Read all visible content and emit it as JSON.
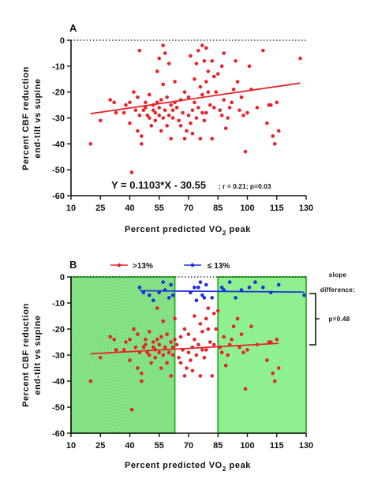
{
  "colors": {
    "above": "#e8232a",
    "below": "#1f2fdc",
    "shade": "#8ff08f",
    "shade_border": "#1aa61a",
    "ink": "#111111"
  },
  "panel_a": {
    "label": "A",
    "ylabel_line1": "Percent  CBF  reduction",
    "ylabel_line2": "end-tilt  vs  supine",
    "xlabel": "Percent  predicted  VO",
    "xlabel_sub": "2",
    "xlabel_tail": " peak",
    "equation": "Y = 0.1103*X - 30.55",
    "stats": "; r = 0.21;  p=0.03"
  },
  "panel_b": {
    "label": "B",
    "ylabel_line1": "Percent  CBF  reduction",
    "ylabel_line2": "end-tilt  vs  supine",
    "xlabel": "Percent  predicted  VO",
    "xlabel_sub": "2",
    "xlabel_tail": " peak",
    "legend_above": ">13%",
    "legend_below": "≤ 13%",
    "annotation_line1": "slope",
    "annotation_line2": "difference:",
    "annotation_p": "p=0.48"
  },
  "chart_data": [
    {
      "panel": "A",
      "type": "scatter",
      "xlabel": "Percent predicted VO2 peak",
      "ylabel": "Percent CBF reduction end-tilt vs supine",
      "xlim": [
        10,
        130
      ],
      "ylim": [
        -60,
        0
      ],
      "xticks": [
        10,
        25,
        40,
        55,
        70,
        85,
        100,
        115,
        130
      ],
      "yticks": [
        0,
        -10,
        -20,
        -30,
        -40,
        -50,
        -60
      ],
      "reference_line_y": 0,
      "series": [
        {
          "color": "#e8232a",
          "points": [
            [
              20,
              -40
            ],
            [
              25,
              -31
            ],
            [
              30,
              -23
            ],
            [
              32,
              -24
            ],
            [
              33,
              -28
            ],
            [
              37,
              -28
            ],
            [
              38,
              -25
            ],
            [
              40,
              -24
            ],
            [
              40,
              -32
            ],
            [
              41,
              -51
            ],
            [
              42,
              -20
            ],
            [
              43,
              -27
            ],
            [
              44,
              -22
            ],
            [
              44,
              -35
            ],
            [
              45,
              -4
            ],
            [
              45,
              -29
            ],
            [
              46,
              -37
            ],
            [
              46,
              -40
            ],
            [
              47,
              -27
            ],
            [
              48,
              -24
            ],
            [
              48,
              -26
            ],
            [
              49,
              -29
            ],
            [
              50,
              -21
            ],
            [
              50,
              -30
            ],
            [
              51,
              -33
            ],
            [
              52,
              -25
            ],
            [
              52,
              -27
            ],
            [
              53,
              -28
            ],
            [
              53,
              -31
            ],
            [
              54,
              -12
            ],
            [
              54,
              -24
            ],
            [
              55,
              -7
            ],
            [
              55,
              -26
            ],
            [
              55,
              -29
            ],
            [
              56,
              -23
            ],
            [
              56,
              -35
            ],
            [
              57,
              -2
            ],
            [
              57,
              -17
            ],
            [
              57,
              -30
            ],
            [
              58,
              -5
            ],
            [
              58,
              -27
            ],
            [
              59,
              -22
            ],
            [
              59,
              -33
            ],
            [
              60,
              -9
            ],
            [
              60,
              -29
            ],
            [
              61,
              -25
            ],
            [
              61,
              -38
            ],
            [
              62,
              -27
            ],
            [
              62,
              -30
            ],
            [
              63,
              -16
            ],
            [
              63,
              -24
            ],
            [
              64,
              -26
            ],
            [
              65,
              -31
            ],
            [
              66,
              -23
            ],
            [
              66,
              -33
            ],
            [
              67,
              -28
            ],
            [
              68,
              -38
            ],
            [
              68,
              -20
            ],
            [
              69,
              -35
            ],
            [
              70,
              -22
            ],
            [
              70,
              -29
            ],
            [
              71,
              -6
            ],
            [
              71,
              -32
            ],
            [
              72,
              -27
            ],
            [
              72,
              -36
            ],
            [
              73,
              -15
            ],
            [
              73,
              -24
            ],
            [
              74,
              -9
            ],
            [
              74,
              -30
            ],
            [
              75,
              -4
            ],
            [
              75,
              -26
            ],
            [
              76,
              -18
            ],
            [
              76,
              -38
            ],
            [
              77,
              -2
            ],
            [
              77,
              -21
            ],
            [
              77,
              -28
            ],
            [
              78,
              -8
            ],
            [
              78,
              -31
            ],
            [
              79,
              -3
            ],
            [
              79,
              -16
            ],
            [
              79,
              -28
            ],
            [
              80,
              -12
            ],
            [
              80,
              -20
            ],
            [
              81,
              -25
            ],
            [
              82,
              -8
            ],
            [
              82,
              -38
            ],
            [
              83,
              -14
            ],
            [
              83,
              -26
            ],
            [
              84,
              -20
            ],
            [
              85,
              -13
            ],
            [
              86,
              -27
            ],
            [
              87,
              -10
            ],
            [
              87,
              -29
            ],
            [
              88,
              -5
            ],
            [
              88,
              -23
            ],
            [
              89,
              -34
            ],
            [
              90,
              -30
            ],
            [
              91,
              -26
            ],
            [
              92,
              -24
            ],
            [
              93,
              -19
            ],
            [
              94,
              -8
            ],
            [
              95,
              -16
            ],
            [
              96,
              -27
            ],
            [
              97,
              -22
            ],
            [
              98,
              -29
            ],
            [
              99,
              -43
            ],
            [
              100,
              -28
            ],
            [
              101,
              -10
            ],
            [
              102,
              -19
            ],
            [
              105,
              -26
            ],
            [
              108,
              -4
            ],
            [
              110,
              -32
            ],
            [
              111,
              -25
            ],
            [
              112,
              -25
            ],
            [
              113,
              -37
            ],
            [
              114,
              -40
            ],
            [
              115,
              -24
            ],
            [
              116,
              -35
            ],
            [
              127,
              -7
            ]
          ],
          "regression": {
            "slope": 0.1103,
            "intercept": -30.55,
            "x_from": 20,
            "x_to": 127
          }
        }
      ]
    },
    {
      "panel": "B",
      "type": "scatter",
      "xlabel": "Percent predicted VO2 peak",
      "ylabel": "Percent CBF reduction end-tilt vs supine",
      "xlim": [
        10,
        130
      ],
      "ylim": [
        -60,
        0
      ],
      "xticks": [
        10,
        25,
        40,
        55,
        70,
        85,
        100,
        115,
        130
      ],
      "yticks": [
        0,
        -10,
        -20,
        -30,
        -40,
        -50,
        -60
      ],
      "reference_line_y": 0,
      "shaded_regions": [
        {
          "x_from": 10,
          "x_to": 63,
          "y_from": -60,
          "y_to": 0,
          "pattern": "dotted"
        },
        {
          "x_from": 85,
          "x_to": 130,
          "y_from": -60,
          "y_to": 0,
          "pattern": "solid"
        }
      ],
      "legend": [
        {
          "label": ">13%",
          "color": "#e8232a"
        },
        {
          "label": "≤ 13%",
          "color": "#1f2fdc"
        }
      ],
      "series": [
        {
          "name": ">13%",
          "color": "#e8232a",
          "points": [
            [
              20,
              -40
            ],
            [
              25,
              -31
            ],
            [
              30,
              -23
            ],
            [
              32,
              -24
            ],
            [
              33,
              -28
            ],
            [
              37,
              -28
            ],
            [
              38,
              -25
            ],
            [
              40,
              -24
            ],
            [
              40,
              -32
            ],
            [
              41,
              -51
            ],
            [
              42,
              -20
            ],
            [
              43,
              -27
            ],
            [
              44,
              -22
            ],
            [
              44,
              -35
            ],
            [
              45,
              -29
            ],
            [
              46,
              -37
            ],
            [
              46,
              -40
            ],
            [
              47,
              -27
            ],
            [
              48,
              -24
            ],
            [
              48,
              -26
            ],
            [
              49,
              -29
            ],
            [
              50,
              -21
            ],
            [
              50,
              -30
            ],
            [
              51,
              -33
            ],
            [
              52,
              -25
            ],
            [
              52,
              -27
            ],
            [
              53,
              -28
            ],
            [
              53,
              -31
            ],
            [
              54,
              -12
            ],
            [
              54,
              -24
            ],
            [
              55,
              -26
            ],
            [
              55,
              -29
            ],
            [
              56,
              -23
            ],
            [
              56,
              -35
            ],
            [
              57,
              -17
            ],
            [
              57,
              -30
            ],
            [
              58,
              -27
            ],
            [
              59,
              -22
            ],
            [
              59,
              -33
            ],
            [
              60,
              -29
            ],
            [
              61,
              -25
            ],
            [
              61,
              -38
            ],
            [
              62,
              -27
            ],
            [
              62,
              -30
            ],
            [
              63,
              -16
            ],
            [
              63,
              -24
            ],
            [
              64,
              -26
            ],
            [
              65,
              -31
            ],
            [
              66,
              -23
            ],
            [
              66,
              -33
            ],
            [
              67,
              -28
            ],
            [
              68,
              -38
            ],
            [
              68,
              -20
            ],
            [
              69,
              -35
            ],
            [
              70,
              -22
            ],
            [
              70,
              -29
            ],
            [
              71,
              -32
            ],
            [
              72,
              -27
            ],
            [
              72,
              -36
            ],
            [
              73,
              -15
            ],
            [
              73,
              -24
            ],
            [
              74,
              -30
            ],
            [
              75,
              -26
            ],
            [
              76,
              -18
            ],
            [
              76,
              -38
            ],
            [
              77,
              -21
            ],
            [
              77,
              -28
            ],
            [
              78,
              -31
            ],
            [
              79,
              -16
            ],
            [
              79,
              -28
            ],
            [
              80,
              -12
            ],
            [
              80,
              -20
            ],
            [
              81,
              -25
            ],
            [
              82,
              -38
            ],
            [
              83,
              -14
            ],
            [
              83,
              -26
            ],
            [
              84,
              -20
            ],
            [
              85,
              -13
            ],
            [
              86,
              -27
            ],
            [
              87,
              -29
            ],
            [
              88,
              -23
            ],
            [
              89,
              -34
            ],
            [
              90,
              -30
            ],
            [
              91,
              -26
            ],
            [
              92,
              -24
            ],
            [
              93,
              -19
            ],
            [
              95,
              -16
            ],
            [
              96,
              -27
            ],
            [
              97,
              -22
            ],
            [
              98,
              -29
            ],
            [
              99,
              -43
            ],
            [
              100,
              -28
            ],
            [
              102,
              -19
            ],
            [
              105,
              -26
            ],
            [
              110,
              -32
            ],
            [
              111,
              -25
            ],
            [
              112,
              -25
            ],
            [
              113,
              -37
            ],
            [
              114,
              -40
            ],
            [
              115,
              -24
            ],
            [
              116,
              -35
            ]
          ],
          "regression": {
            "x_from": 20,
            "x_to": 116,
            "y_from": -29.5,
            "y_to": -25.5
          }
        },
        {
          "name": "≤ 13%",
          "color": "#1f2fdc",
          "points": [
            [
              45,
              -4
            ],
            [
              47,
              -6
            ],
            [
              50,
              -7
            ],
            [
              52,
              -9
            ],
            [
              55,
              -6
            ],
            [
              57,
              -2
            ],
            [
              58,
              -5
            ],
            [
              60,
              -8
            ],
            [
              61,
              -3
            ],
            [
              62,
              -7
            ],
            [
              71,
              -6
            ],
            [
              73,
              -4
            ],
            [
              74,
              -9
            ],
            [
              75,
              -4
            ],
            [
              76,
              -2
            ],
            [
              77,
              -7
            ],
            [
              78,
              -8
            ],
            [
              79,
              -3
            ],
            [
              82,
              -8
            ],
            [
              87,
              -4
            ],
            [
              88,
              -5
            ],
            [
              91,
              -2
            ],
            [
              94,
              -8
            ],
            [
              97,
              -5
            ],
            [
              101,
              -4
            ],
            [
              104,
              -2
            ],
            [
              108,
              -4
            ],
            [
              112,
              -6
            ],
            [
              116,
              -3
            ],
            [
              129,
              -7
            ]
          ],
          "regression": {
            "x_from": 45,
            "x_to": 129,
            "y_from": -5.3,
            "y_to": -5.8
          }
        }
      ]
    }
  ]
}
